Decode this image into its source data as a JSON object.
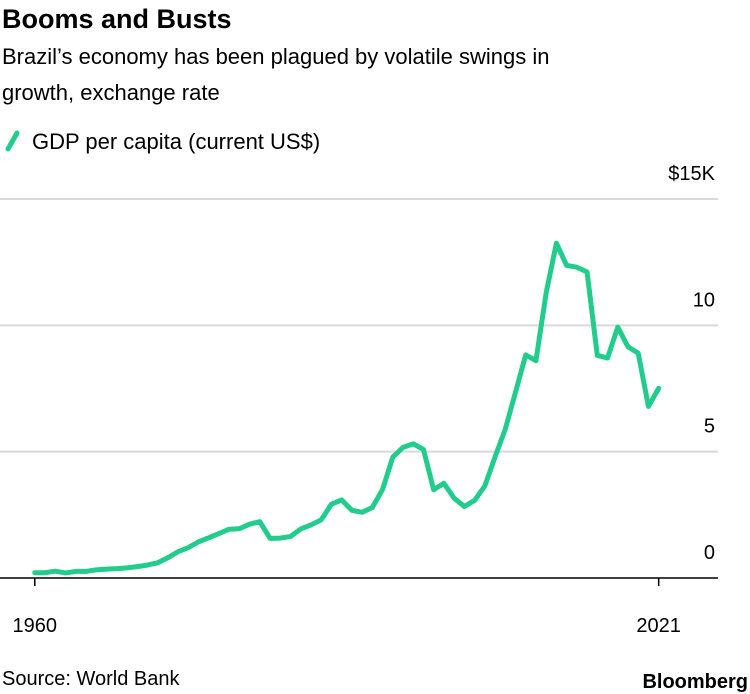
{
  "chart_data": {
    "type": "line",
    "title": "Booms and Busts",
    "subtitle": [
      "Brazil’s economy has been plagued by volatile swings in",
      "growth, exchange rate"
    ],
    "source": "Source: World Bank",
    "brand": "Bloomberg",
    "x": [
      1960,
      1961,
      1962,
      1963,
      1964,
      1965,
      1966,
      1967,
      1968,
      1969,
      1970,
      1971,
      1972,
      1973,
      1974,
      1975,
      1976,
      1977,
      1978,
      1979,
      1980,
      1981,
      1982,
      1983,
      1984,
      1985,
      1986,
      1987,
      1988,
      1989,
      1990,
      1991,
      1992,
      1993,
      1994,
      1995,
      1996,
      1997,
      1998,
      1999,
      2000,
      2001,
      2002,
      2003,
      2004,
      2005,
      2006,
      2007,
      2008,
      2009,
      2010,
      2011,
      2012,
      2013,
      2014,
      2015,
      2016,
      2017,
      2018,
      2019,
      2020,
      2021
    ],
    "series": [
      {
        "name": "GDP per capita (current US$)",
        "color": "#21cc8c",
        "values": [
          0.21,
          0.21,
          0.27,
          0.2,
          0.26,
          0.26,
          0.32,
          0.35,
          0.37,
          0.4,
          0.45,
          0.51,
          0.6,
          0.8,
          1.04,
          1.2,
          1.43,
          1.59,
          1.76,
          1.93,
          1.95,
          2.13,
          2.23,
          1.57,
          1.58,
          1.64,
          1.94,
          2.1,
          2.3,
          2.92,
          3.09,
          2.68,
          2.6,
          2.79,
          3.5,
          4.78,
          5.17,
          5.31,
          5.09,
          3.49,
          3.75,
          3.16,
          2.83,
          3.07,
          3.64,
          4.79,
          5.89,
          7.35,
          8.83,
          8.6,
          11.29,
          13.25,
          12.37,
          12.3,
          12.11,
          8.81,
          8.71,
          9.93,
          9.15,
          8.9,
          6.79,
          7.51
        ]
      }
    ],
    "xlim": [
      1956.6,
      2026.8
    ],
    "xticks": [
      1960,
      2021
    ],
    "ylim": [
      0,
      15
    ],
    "yticks": [
      0,
      5,
      10,
      {
        "value": 15,
        "label": "$15K"
      }
    ],
    "grid": true
  }
}
